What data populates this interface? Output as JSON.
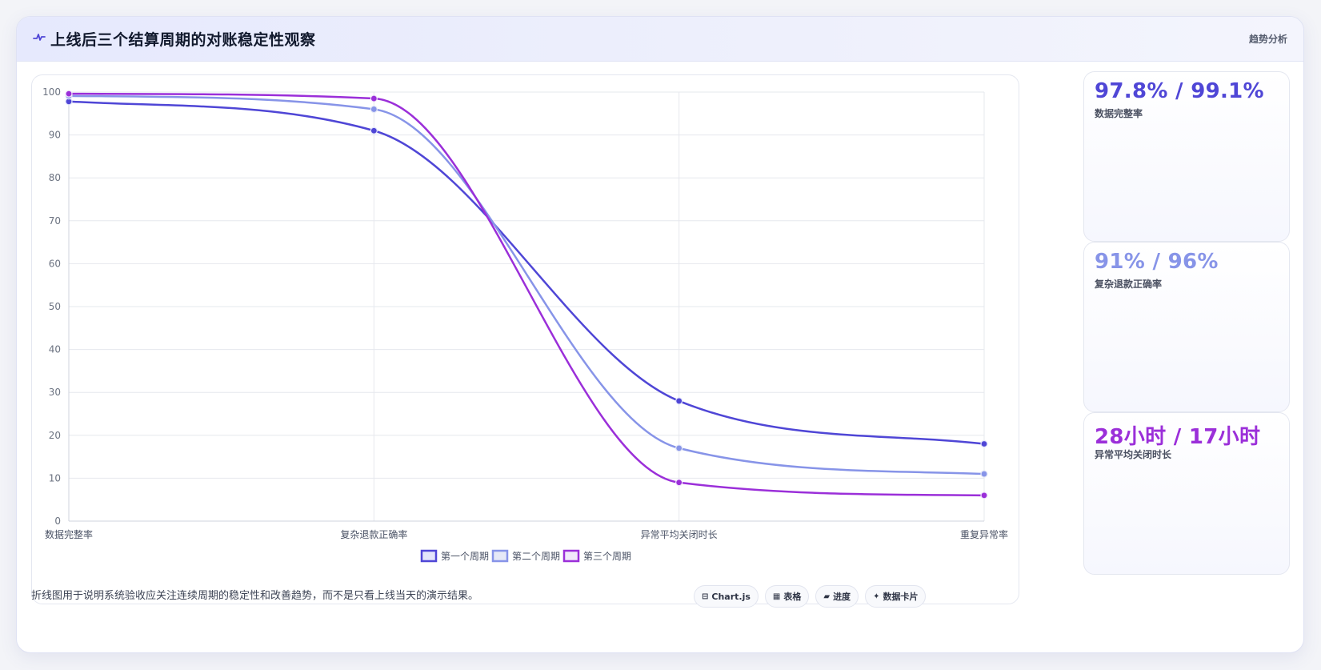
{
  "header": {
    "icon": "pulse-icon",
    "title": "上线后三个结算周期的对账稳定性观察",
    "tag": "趋势分析"
  },
  "chart_data": {
    "type": "line",
    "categories": [
      "数据完整率",
      "复杂退款正确率",
      "异常平均关闭时长",
      "重复异常率"
    ],
    "ylim": [
      0,
      100
    ],
    "yticks": [
      0,
      10,
      20,
      30,
      40,
      50,
      60,
      70,
      80,
      90,
      100
    ],
    "grid": true,
    "legend_position": "bottom",
    "series": [
      {
        "name": "第一个周期",
        "values": [
          97.8,
          91,
          28,
          18
        ],
        "color": "#4f46d6",
        "fill": "#e3e5fb"
      },
      {
        "name": "第二个周期",
        "values": [
          99.1,
          96,
          17,
          11
        ],
        "color": "#8794e8",
        "fill": "#e6e9f7"
      },
      {
        "name": "第三个周期",
        "values": [
          99.6,
          98.5,
          9,
          6
        ],
        "color": "#9b2fd9",
        "fill": "#f1e8fb"
      }
    ]
  },
  "kpis": [
    {
      "value": "97.8% / 99.1%",
      "label": "数据完整率",
      "color": "#4f46d6"
    },
    {
      "value": "91% / 96%",
      "label": "复杂退款正确率",
      "color": "#8794e8"
    },
    {
      "value": "28小时 / 17小时",
      "label": "异常平均关闭时长",
      "color": "#9b2fd9"
    }
  ],
  "footnote": "折线图用于说明系统验收应关注连续周期的稳定性和改善趋势，而不是只看上线当天的演示结果。",
  "chips": [
    {
      "icon": "chart-icon",
      "glyph": "⊟",
      "label": "Chart.js"
    },
    {
      "icon": "table-icon",
      "glyph": "▦",
      "label": "表格"
    },
    {
      "icon": "progress-icon",
      "glyph": "▰",
      "label": "进度"
    },
    {
      "icon": "sparkle-icon",
      "glyph": "✦",
      "label": "数据卡片"
    }
  ]
}
